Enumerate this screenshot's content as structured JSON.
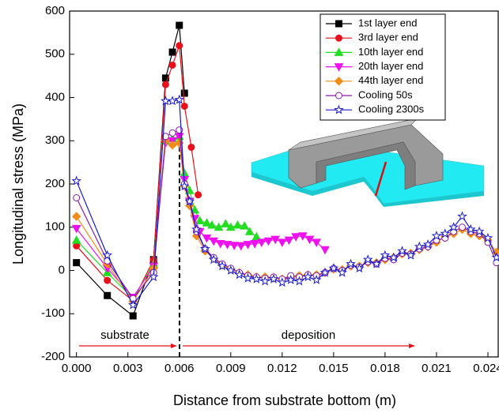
{
  "chart_data": {
    "type": "line",
    "x_label": "Distance from substrate  bottom (m)",
    "y_label": "Longitudinal stress (MPa)",
    "annotations": [
      "substrate",
      "deposition"
    ],
    "xlim": [
      -0.0004,
      0.0246
    ],
    "ylim": [
      -200,
      600
    ],
    "xticks": [
      {
        "value": 0,
        "label": "0.000"
      },
      {
        "value": 0.003,
        "label": "0.003"
      },
      {
        "value": 0.006,
        "label": "0.006"
      },
      {
        "value": 0.009,
        "label": "0.009"
      },
      {
        "value": 0.012,
        "label": "0.012"
      },
      {
        "value": 0.015,
        "label": "0.015"
      },
      {
        "value": 0.018,
        "label": "0.018"
      },
      {
        "value": 0.021,
        "label": "0.021"
      },
      {
        "value": 0.024,
        "label": "0.024"
      }
    ],
    "yticks": [
      -200,
      -100,
      0,
      100,
      200,
      300,
      400,
      500,
      600
    ],
    "series": [
      {
        "name": "1st layer end",
        "color": "#000000",
        "marker": "square",
        "x": [
          0,
          0.0018,
          0.0033,
          0.0045,
          0.0052,
          0.0056,
          0.006,
          0.0063
        ],
        "values": [
          18,
          -58,
          -105,
          25,
          445,
          505,
          567,
          410
        ]
      },
      {
        "name": "3rd layer end",
        "color": "#e8101a",
        "marker": "circle",
        "x": [
          0,
          0.0018,
          0.0033,
          0.0045,
          0.0052,
          0.0056,
          0.006,
          0.0063,
          0.0067,
          0.0071
        ],
        "values": [
          57,
          -23,
          -70,
          25,
          430,
          475,
          520,
          380,
          285,
          175
        ]
      },
      {
        "name": "10th layer end",
        "color": "#22dd22",
        "marker": "triangle-up",
        "x": [
          0,
          0.0018,
          0.0033,
          0.0045,
          0.0052,
          0.0056,
          0.006,
          0.0063,
          0.0066,
          0.0069,
          0.0072,
          0.0076,
          0.0079,
          0.0083,
          0.0087,
          0.009,
          0.0094,
          0.0098,
          0.0101,
          0.0105
        ],
        "values": [
          70,
          -5,
          -65,
          15,
          300,
          305,
          310,
          225,
          185,
          140,
          115,
          110,
          105,
          100,
          108,
          100,
          105,
          103,
          90,
          78
        ]
      },
      {
        "name": "20th layer end",
        "color": "#ee10ee",
        "marker": "triangle-down",
        "x": [
          0,
          0.0018,
          0.0033,
          0.0045,
          0.0052,
          0.0056,
          0.006,
          0.0063,
          0.0066,
          0.0069,
          0.0072,
          0.0076,
          0.008,
          0.0084,
          0.0088,
          0.0092,
          0.0096,
          0.01,
          0.0104,
          0.0108,
          0.0112,
          0.0116,
          0.012,
          0.0124,
          0.0128,
          0.0132,
          0.0136,
          0.014,
          0.0145
        ],
        "values": [
          97,
          5,
          -62,
          10,
          295,
          300,
          310,
          210,
          160,
          120,
          90,
          75,
          68,
          62,
          60,
          58,
          57,
          60,
          62,
          65,
          68,
          72,
          65,
          70,
          78,
          80,
          72,
          65,
          48
        ]
      },
      {
        "name": "44th layer end",
        "color": "#f28c17",
        "marker": "diamond",
        "x": [
          0,
          0.0018,
          0.0033,
          0.0045,
          0.0052,
          0.0056,
          0.006,
          0.0063,
          0.0066,
          0.007,
          0.0075,
          0.008,
          0.0085,
          0.009,
          0.0095,
          0.01,
          0.0105,
          0.011,
          0.0115,
          0.012,
          0.0125,
          0.013,
          0.0135,
          0.014,
          0.0145,
          0.015,
          0.0155,
          0.016,
          0.0165,
          0.017,
          0.0175,
          0.018,
          0.0185,
          0.019,
          0.0195,
          0.02,
          0.0205,
          0.021,
          0.0215,
          0.022,
          0.0225,
          0.023,
          0.0235,
          0.024,
          0.0245
        ],
        "values": [
          125,
          15,
          -72,
          5,
          300,
          290,
          295,
          195,
          150,
          80,
          45,
          28,
          12,
          3,
          -5,
          -10,
          -15,
          -15,
          -18,
          -20,
          -15,
          -12,
          -10,
          -10,
          -5,
          3,
          2,
          10,
          10,
          18,
          18,
          25,
          30,
          38,
          40,
          48,
          55,
          65,
          78,
          85,
          95,
          85,
          80,
          70,
          42
        ]
      },
      {
        "name": "Cooling 50s",
        "color": "#8a1aa8",
        "marker": "open-circle",
        "x": [
          0,
          0.0018,
          0.0033,
          0.0045,
          0.0052,
          0.0056,
          0.006,
          0.0063,
          0.0066,
          0.007,
          0.0075,
          0.008,
          0.0085,
          0.009,
          0.0095,
          0.01,
          0.0105,
          0.011,
          0.0115,
          0.012,
          0.0125,
          0.013,
          0.0135,
          0.014,
          0.0145,
          0.015,
          0.0155,
          0.016,
          0.0165,
          0.017,
          0.0175,
          0.018,
          0.0185,
          0.019,
          0.0195,
          0.02,
          0.0205,
          0.021,
          0.0215,
          0.022,
          0.0225,
          0.023,
          0.0235,
          0.024,
          0.0245
        ],
        "values": [
          168,
          22,
          -65,
          -5,
          310,
          318,
          325,
          200,
          160,
          90,
          50,
          30,
          15,
          5,
          -5,
          -12,
          -15,
          -18,
          -15,
          -20,
          -12,
          -15,
          -10,
          -12,
          -5,
          5,
          0,
          12,
          8,
          20,
          15,
          28,
          25,
          40,
          38,
          50,
          55,
          70,
          75,
          90,
          100,
          90,
          85,
          65,
          18
        ]
      },
      {
        "name": "Cooling 2300s",
        "color": "#1a1ad0",
        "marker": "open-star",
        "x": [
          0,
          0.0018,
          0.0033,
          0.0045,
          0.0052,
          0.0056,
          0.006,
          0.0063,
          0.0066,
          0.007,
          0.0075,
          0.008,
          0.0085,
          0.009,
          0.0095,
          0.01,
          0.0105,
          0.011,
          0.0115,
          0.012,
          0.0125,
          0.013,
          0.0135,
          0.014,
          0.0145,
          0.015,
          0.0155,
          0.016,
          0.0165,
          0.017,
          0.0175,
          0.018,
          0.0185,
          0.019,
          0.0195,
          0.02,
          0.0205,
          0.021,
          0.0215,
          0.022,
          0.0225,
          0.023,
          0.0235,
          0.024,
          0.0245
        ],
        "values": [
          207,
          35,
          -80,
          -15,
          392,
          392,
          395,
          195,
          160,
          95,
          50,
          25,
          10,
          0,
          -10,
          -18,
          -20,
          -25,
          -20,
          -28,
          -22,
          -25,
          -15,
          -22,
          -5,
          5,
          -5,
          15,
          5,
          25,
          15,
          35,
          30,
          45,
          35,
          55,
          60,
          80,
          85,
          100,
          125,
          95,
          90,
          75,
          30
        ]
      }
    ]
  }
}
